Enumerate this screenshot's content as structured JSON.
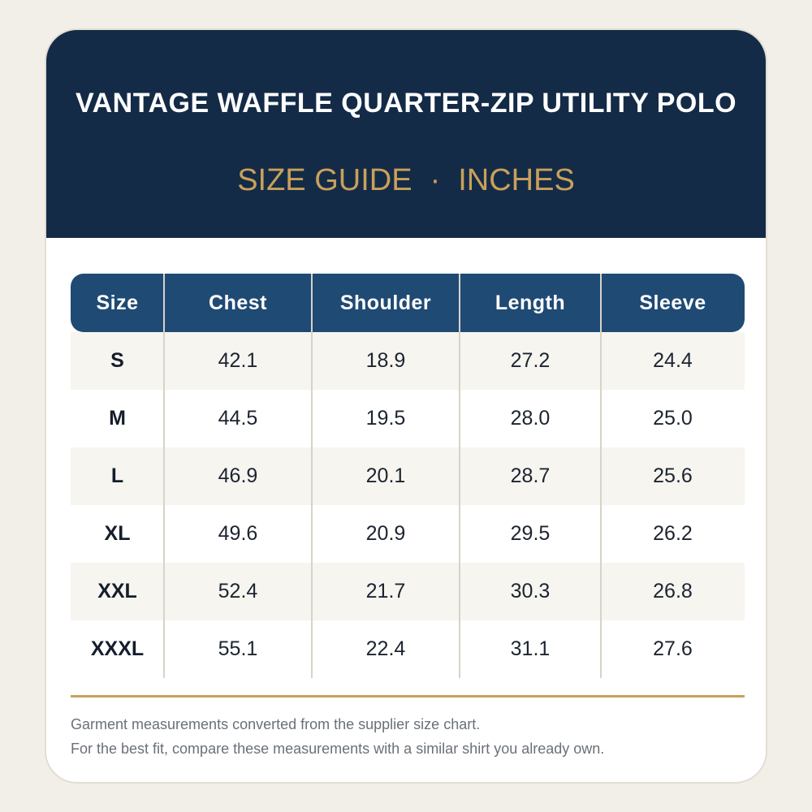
{
  "product": {
    "title": "VANTAGE WAFFLE QUARTER-ZIP UTILITY POLO",
    "subtitle_left": "SIZE GUIDE",
    "subtitle_sep": "·",
    "subtitle_right": "INCHES"
  },
  "table": {
    "headers": [
      "Size",
      "Chest",
      "Shoulder",
      "Length",
      "Sleeve"
    ],
    "rows": [
      [
        "S",
        "42.1",
        "18.9",
        "27.2",
        "24.4"
      ],
      [
        "M",
        "44.5",
        "19.5",
        "28.0",
        "25.0"
      ],
      [
        "L",
        "46.9",
        "20.1",
        "28.7",
        "25.6"
      ],
      [
        "XL",
        "49.6",
        "20.9",
        "29.5",
        "26.2"
      ],
      [
        "XXL",
        "52.4",
        "21.7",
        "30.3",
        "26.8"
      ],
      [
        "XXXL",
        "55.1",
        "22.4",
        "31.1",
        "27.6"
      ]
    ]
  },
  "notes": {
    "line1": "Garment measurements converted from the supplier size chart.",
    "line2": "For the best fit, compare these measurements with a similar shirt you already own."
  },
  "colors": {
    "header_bg": "#142b47",
    "table_header_bg": "#1f4a74",
    "accent_gold": "#c9a05a",
    "page_bg": "#f2efe8"
  }
}
